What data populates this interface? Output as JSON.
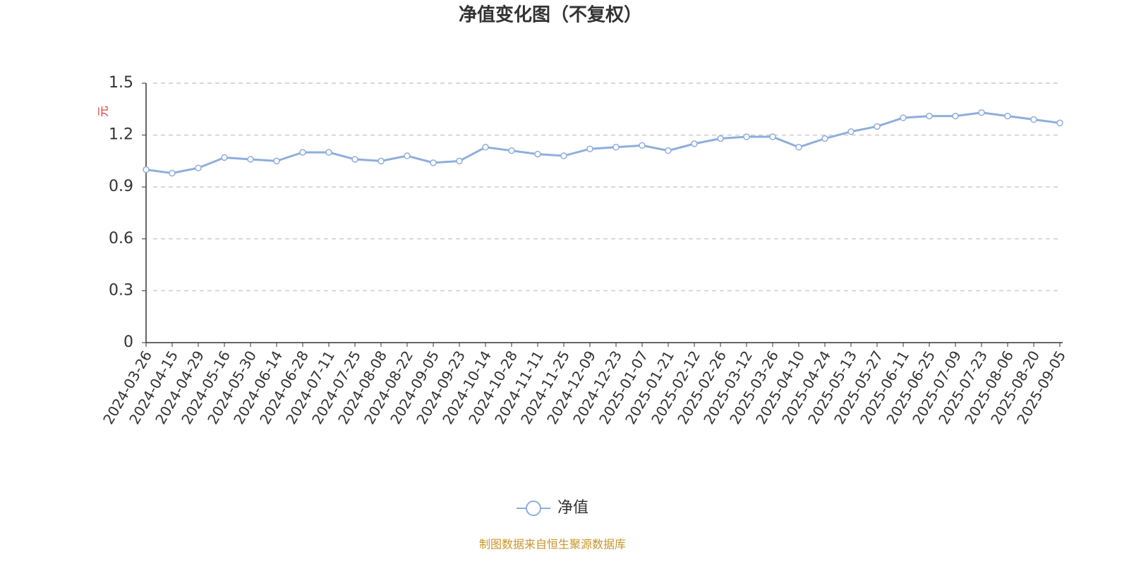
{
  "chart_data": {
    "type": "line",
    "title": "净值变化图（不复权）",
    "y_label": "元",
    "categories": [
      "2024-03-26",
      "2024-04-15",
      "2024-04-29",
      "2024-05-16",
      "2024-05-30",
      "2024-06-14",
      "2024-06-28",
      "2024-07-11",
      "2024-07-25",
      "2024-08-08",
      "2024-08-22",
      "2024-09-05",
      "2024-09-23",
      "2024-10-14",
      "2024-10-28",
      "2024-11-11",
      "2024-11-25",
      "2024-12-09",
      "2024-12-23",
      "2025-01-07",
      "2025-01-21",
      "2025-02-12",
      "2025-02-26",
      "2025-03-12",
      "2025-03-26",
      "2025-04-10",
      "2025-04-24",
      "2025-05-13",
      "2025-05-27",
      "2025-06-11",
      "2025-06-25",
      "2025-07-09",
      "2025-07-23",
      "2025-08-06",
      "2025-08-20",
      "2025-09-05"
    ],
    "series": [
      {
        "name": "净值",
        "color": "#8eaedc",
        "values": [
          1.0,
          0.98,
          1.01,
          1.07,
          1.06,
          1.05,
          1.1,
          1.1,
          1.06,
          1.05,
          1.08,
          1.04,
          1.05,
          1.13,
          1.11,
          1.09,
          1.08,
          1.12,
          1.13,
          1.14,
          1.11,
          1.15,
          1.18,
          1.19,
          1.19,
          1.13,
          1.18,
          1.22,
          1.25,
          1.3,
          1.31,
          1.31,
          1.33,
          1.31,
          1.29,
          1.27
        ]
      }
    ],
    "ylim": [
      0,
      1.5
    ],
    "yticks": [
      0,
      0.3,
      0.6,
      0.9,
      1.2,
      1.5
    ],
    "grid": true,
    "source": "制图数据来自恒生聚源数据库"
  }
}
